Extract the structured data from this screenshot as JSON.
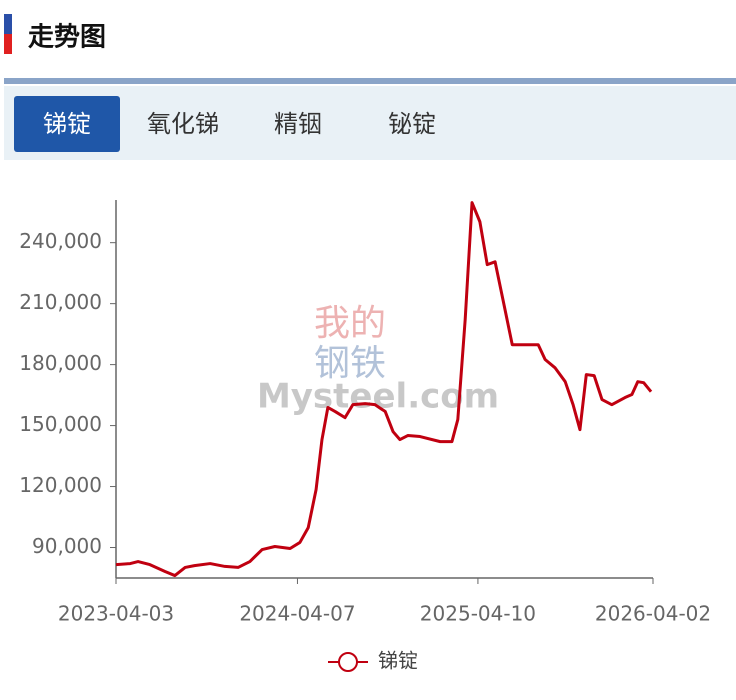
{
  "header": {
    "title": "走势图"
  },
  "tabs": {
    "items": [
      "锑锭",
      "氧化锑",
      "精铟",
      "铋锭"
    ],
    "active": 0
  },
  "watermark": {
    "lines": [
      "我的",
      "钢铁"
    ],
    "brand": "Mysteel.com"
  },
  "chart_data": {
    "type": "line",
    "x": [
      "2023-04-03",
      "2023-05-02",
      "2023-05-18",
      "2023-06-11",
      "2023-07-12",
      "2023-08-01",
      "2023-08-22",
      "2023-09-10",
      "2023-10-12",
      "2023-11-11",
      "2023-12-08",
      "2024-01-01",
      "2024-01-26",
      "2024-02-21",
      "2024-03-23",
      "2024-04-12",
      "2024-04-29",
      "2024-05-15",
      "2024-05-27",
      "2024-06-08",
      "2024-06-23",
      "2024-07-13",
      "2024-07-29",
      "2024-08-23",
      "2024-09-12",
      "2024-10-03",
      "2024-10-19",
      "2024-11-02",
      "2024-11-18",
      "2024-12-13",
      "2025-01-23",
      "2025-02-16",
      "2025-02-28",
      "2025-03-15",
      "2025-03-29",
      "2025-04-14",
      "2025-04-29",
      "2025-05-15",
      "2025-05-31",
      "2025-06-19",
      "2025-07-15",
      "2025-08-11",
      "2025-08-25",
      "2025-09-14",
      "2025-10-05",
      "2025-10-21",
      "2025-11-04",
      "2025-11-17",
      "2025-12-03",
      "2025-12-19",
      "2026-01-08",
      "2026-02-04",
      "2026-02-18",
      "2026-03-02",
      "2026-03-14",
      "2026-03-29"
    ],
    "series": [
      {
        "name": "锑锭",
        "color": "#c00010",
        "values": [
          81600,
          82100,
          83100,
          81600,
          78200,
          76200,
          80200,
          81100,
          82100,
          80700,
          80200,
          83100,
          89000,
          90500,
          89500,
          92500,
          99800,
          118500,
          143100,
          158900,
          156900,
          153900,
          160300,
          160800,
          160300,
          156900,
          147000,
          143100,
          145100,
          144600,
          142100,
          142100,
          153000,
          202100,
          259700,
          250300,
          229200,
          230600,
          212000,
          189800,
          189800,
          189800,
          182500,
          178500,
          171600,
          160300,
          148000,
          175100,
          174600,
          162800,
          160300,
          163800,
          165300,
          171600,
          171100,
          166700
        ]
      }
    ],
    "xlim": [
      "2023-04-03",
      "2026-04-02"
    ],
    "xticks": [
      "2023-04-03",
      "2024-04-07",
      "2025-04-10",
      "2026-04-02"
    ],
    "ylim": [
      75000,
      261000
    ],
    "yticks": [
      {
        "value": 90000,
        "label": "90,000"
      },
      {
        "value": 120000,
        "label": "120,000"
      },
      {
        "value": 150000,
        "label": "150,000"
      },
      {
        "value": 180000,
        "label": "180,000"
      },
      {
        "value": 210000,
        "label": "210,000"
      },
      {
        "value": 240000,
        "label": "240,000"
      }
    ],
    "grid": false,
    "legend": "bottom"
  }
}
